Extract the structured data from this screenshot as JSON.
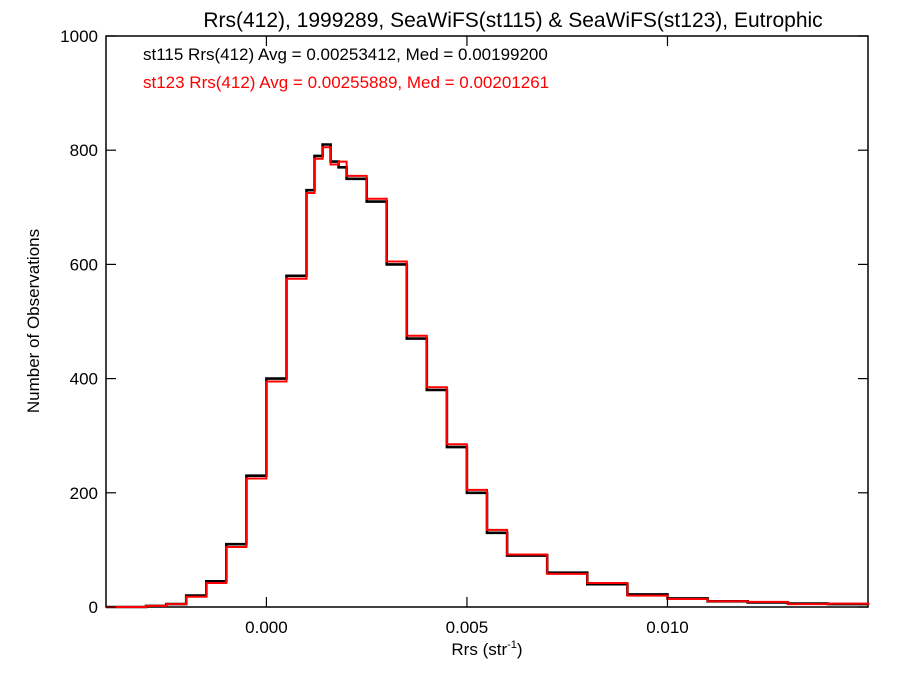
{
  "chart_data": {
    "type": "line",
    "step": true,
    "title": "Rrs(412), 1999289, SeaWiFS(st115) & SeaWiFS(st123), Eutrophic",
    "xlabel": "Rrs (str",
    "xlabel_sup": "-1",
    "xlabel_end": ")",
    "ylabel": "Number of Observations",
    "xlim": [
      -0.004,
      0.015
    ],
    "ylim": [
      0,
      1000
    ],
    "x_ticks": [
      0.0,
      0.005,
      0.01
    ],
    "x_tick_labels": [
      "0.000",
      "0.005",
      "0.010"
    ],
    "y_ticks": [
      0,
      200,
      400,
      600,
      800,
      1000
    ],
    "y_tick_labels": [
      "0",
      "200",
      "400",
      "600",
      "800",
      "1000"
    ],
    "grid": false,
    "annotations": [
      {
        "text": "st115 Rrs(412) Avg = 0.00253412, Med = 0.00199200",
        "color": "#000000"
      },
      {
        "text": "st123 Rrs(412) Avg = 0.00255889, Med = 0.00201261",
        "color": "#ff0000"
      }
    ],
    "series": [
      {
        "color": "#000000",
        "x": [
          -0.004,
          -0.003,
          -0.0025,
          -0.002,
          -0.0015,
          -0.001,
          -0.0005,
          0.0,
          0.0005,
          0.001,
          0.0012,
          0.0014,
          0.0016,
          0.0018,
          0.002,
          0.0025,
          0.003,
          0.0035,
          0.004,
          0.0045,
          0.005,
          0.0055,
          0.006,
          0.007,
          0.008,
          0.009,
          0.01,
          0.011,
          0.012,
          0.013,
          0.014,
          0.015
        ],
        "y": [
          0,
          2,
          5,
          20,
          45,
          110,
          230,
          400,
          580,
          730,
          790,
          810,
          780,
          770,
          750,
          710,
          600,
          470,
          380,
          280,
          200,
          130,
          90,
          60,
          40,
          22,
          15,
          10,
          8,
          6,
          5,
          4
        ]
      },
      {
        "color": "#ff0000",
        "x": [
          -0.004,
          -0.003,
          -0.0025,
          -0.002,
          -0.0015,
          -0.001,
          -0.0005,
          0.0,
          0.0005,
          0.001,
          0.0012,
          0.0014,
          0.0016,
          0.0018,
          0.002,
          0.0025,
          0.003,
          0.0035,
          0.004,
          0.0045,
          0.005,
          0.0055,
          0.006,
          0.007,
          0.008,
          0.009,
          0.01,
          0.011,
          0.012,
          0.013,
          0.014,
          0.015
        ],
        "y": [
          0,
          2,
          5,
          18,
          42,
          105,
          225,
          395,
          575,
          725,
          785,
          805,
          775,
          780,
          755,
          715,
          605,
          475,
          385,
          285,
          205,
          135,
          92,
          58,
          42,
          20,
          14,
          10,
          9,
          5,
          6,
          4
        ]
      }
    ]
  }
}
